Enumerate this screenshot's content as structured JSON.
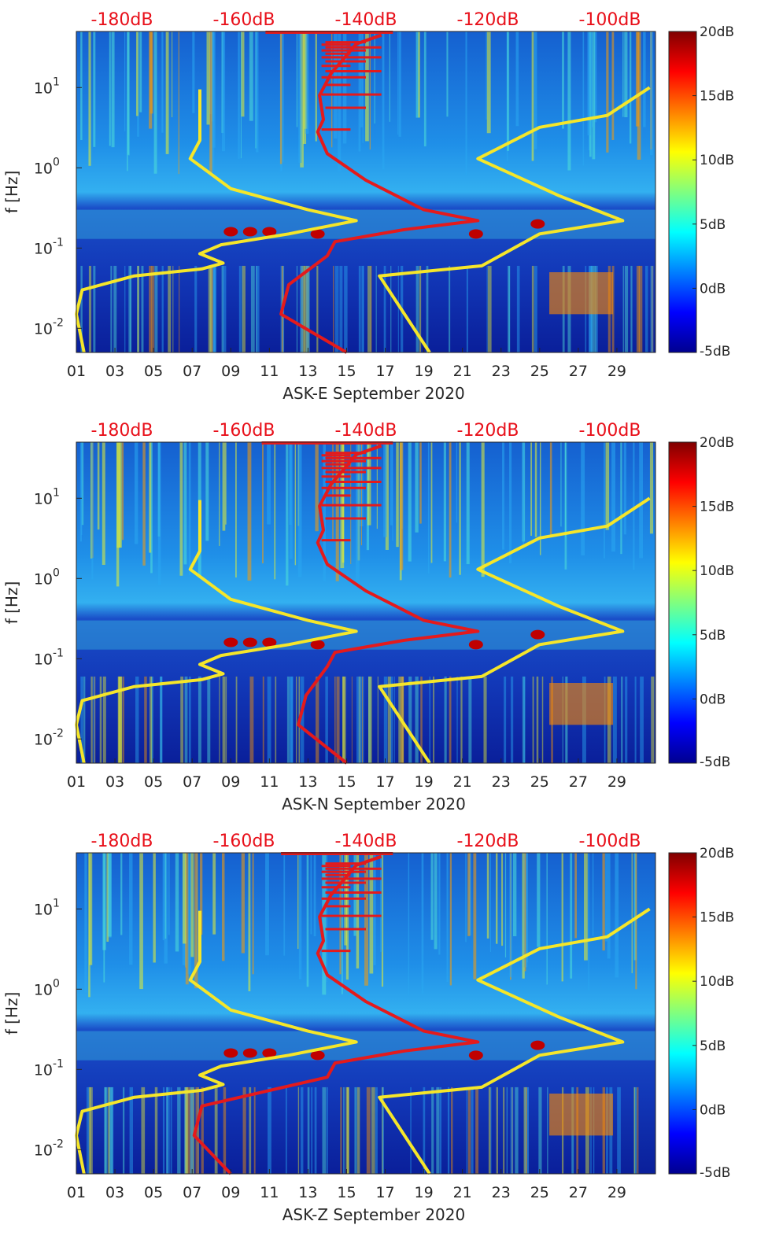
{
  "chart_data": [
    {
      "type": "heatmap",
      "title": "",
      "xlabel": "ASK-E September 2020",
      "ylabel": "f [Hz]",
      "x_ticks": [
        "01",
        "03",
        "05",
        "07",
        "09",
        "11",
        "13",
        "15",
        "17",
        "19",
        "21",
        "23",
        "25",
        "27",
        "29"
      ],
      "y_ticks": [
        "10^-2",
        "10^-1",
        "10^0",
        "10^1"
      ],
      "y_scale": "log",
      "ylim": [
        0.005,
        50
      ],
      "xlim": [
        1,
        31
      ],
      "colorbar": {
        "ticks": [
          "20dB",
          "15dB",
          "10dB",
          "5dB",
          "0dB",
          "-5dB"
        ],
        "range": [
          -5,
          20
        ],
        "colormap": "jet"
      },
      "top_axis_ticks": [
        "-180dB",
        "-160dB",
        "-140dB",
        "-120dB",
        "-100dB"
      ],
      "top_axis_color": "#e8101a",
      "red_curve_color": "#e41a1c",
      "yellow_curve_color": "#f5e62a"
    },
    {
      "type": "heatmap",
      "title": "",
      "xlabel": "ASK-N September 2020",
      "ylabel": "f [Hz]",
      "x_ticks": [
        "01",
        "03",
        "05",
        "07",
        "09",
        "11",
        "13",
        "15",
        "17",
        "19",
        "21",
        "23",
        "25",
        "27",
        "29"
      ],
      "y_ticks": [
        "10^-2",
        "10^-1",
        "10^0",
        "10^1"
      ],
      "y_scale": "log",
      "ylim": [
        0.005,
        50
      ],
      "xlim": [
        1,
        31
      ],
      "colorbar": {
        "ticks": [
          "20dB",
          "15dB",
          "10dB",
          "5dB",
          "0dB",
          "-5dB"
        ],
        "range": [
          -5,
          20
        ],
        "colormap": "jet"
      },
      "top_axis_ticks": [
        "-180dB",
        "-160dB",
        "-140dB",
        "-120dB",
        "-100dB"
      ],
      "top_axis_color": "#e8101a",
      "red_curve_color": "#e41a1c",
      "yellow_curve_color": "#f5e62a"
    },
    {
      "type": "heatmap",
      "title": "",
      "xlabel": "ASK-Z September 2020",
      "ylabel": "f [Hz]",
      "x_ticks": [
        "01",
        "03",
        "05",
        "07",
        "09",
        "11",
        "13",
        "15",
        "17",
        "19",
        "21",
        "23",
        "25",
        "27",
        "29"
      ],
      "y_ticks": [
        "10^-2",
        "10^-1",
        "10^0",
        "10^1"
      ],
      "y_scale": "log",
      "ylim": [
        0.005,
        50
      ],
      "xlim": [
        1,
        31
      ],
      "colorbar": {
        "ticks": [
          "20dB",
          "15dB",
          "10dB",
          "5dB",
          "0dB",
          "-5dB"
        ],
        "range": [
          -5,
          20
        ],
        "colormap": "jet"
      },
      "top_axis_ticks": [
        "-180dB",
        "-160dB",
        "-140dB",
        "-120dB",
        "-100dB"
      ],
      "top_axis_color": "#e8101a",
      "red_curve_color": "#e41a1c",
      "yellow_curve_color": "#f5e62a"
    }
  ]
}
